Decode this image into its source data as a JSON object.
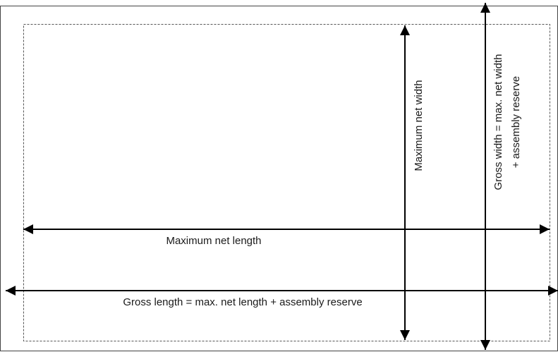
{
  "labels": {
    "max_net_width": "Maximum net width",
    "gross_width_line1": "Gross width = max. net width",
    "gross_width_line2": "+ assembly reserve",
    "max_net_length": "Maximum net length",
    "gross_length": "Gross length = max. net length + assembly reserve"
  },
  "colors": {
    "line": "#000000",
    "frame": "#555555",
    "text": "#1a1a1a"
  }
}
